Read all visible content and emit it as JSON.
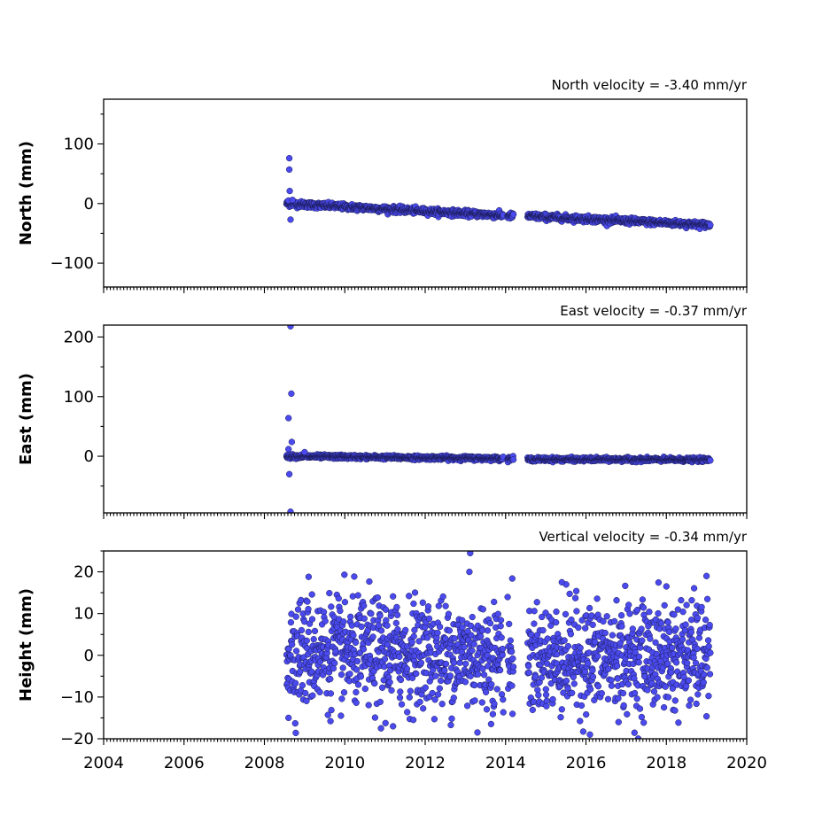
{
  "chart_data": [
    {
      "type": "scatter",
      "title": "North velocity = -3.40 mm/yr",
      "xlabel": "",
      "ylabel": "North (mm)",
      "xlim": [
        2004,
        2020
      ],
      "ylim": [
        -140,
        175
      ],
      "yticks": [
        100,
        0,
        -100
      ],
      "ytick_labels": [
        "100",
        "0",
        "−100"
      ],
      "xticks": [
        2004,
        2006,
        2008,
        2010,
        2012,
        2014,
        2016,
        2018,
        2020
      ],
      "xtick_labels": [
        "",
        "",
        "",
        "",
        "",
        "",
        "",
        "",
        ""
      ],
      "velocity_mm_per_yr": -3.4,
      "series": [
        {
          "color": "#4a4aee",
          "trend_segments": [
            [
              2008.55,
              0,
              2014.2,
              -21
            ],
            [
              2014.55,
              -21,
              2019.1,
              -36
            ]
          ],
          "noise": 2.5,
          "outliers": [
            [
              2008.62,
              76
            ],
            [
              2008.62,
              57
            ],
            [
              2008.63,
              21
            ],
            [
              2008.65,
              -27
            ],
            [
              2008.6,
              5
            ],
            [
              2008.7,
              6
            ]
          ],
          "gaps": [
            [
              2013.95,
              2014.05
            ],
            [
              2014.25,
              2014.5
            ]
          ]
        }
      ]
    },
    {
      "type": "scatter",
      "title": "East velocity = -0.37 mm/yr",
      "xlabel": "",
      "ylabel": "East (mm)",
      "xlim": [
        2004,
        2020
      ],
      "ylim": [
        -95,
        220
      ],
      "yticks": [
        200,
        100,
        0
      ],
      "ytick_labels": [
        "200",
        "100",
        "0"
      ],
      "xticks": [
        2004,
        2006,
        2008,
        2010,
        2012,
        2014,
        2016,
        2018,
        2020
      ],
      "xtick_labels": [
        "",
        "",
        "",
        "",
        "",
        "",
        "",
        "",
        ""
      ],
      "velocity_mm_per_yr": -0.37,
      "series": [
        {
          "color": "#4a4aee",
          "trend_segments": [
            [
              2008.55,
              0,
              2014.2,
              -4
            ],
            [
              2014.55,
              -5,
              2019.1,
              -6
            ]
          ],
          "noise": 1.6,
          "outliers": [
            [
              2008.65,
              218
            ],
            [
              2008.67,
              105
            ],
            [
              2008.6,
              64
            ],
            [
              2008.68,
              24
            ],
            [
              2008.62,
              -30
            ],
            [
              2008.65,
              -93
            ],
            [
              2008.6,
              12
            ],
            [
              2009.0,
              7
            ]
          ],
          "gaps": [
            [
              2013.95,
              2014.05
            ],
            [
              2014.25,
              2014.5
            ]
          ]
        }
      ]
    },
    {
      "type": "scatter",
      "title": "Vertical velocity = -0.34 mm/yr",
      "xlabel": "",
      "ylabel": "Height (mm)",
      "xlim": [
        2004,
        2020
      ],
      "ylim": [
        -20,
        25
      ],
      "yticks": [
        20,
        10,
        0,
        -10,
        -20
      ],
      "ytick_labels": [
        "20",
        "10",
        "0",
        "−10",
        "−20"
      ],
      "xticks": [
        2004,
        2006,
        2008,
        2010,
        2012,
        2014,
        2016,
        2018,
        2020
      ],
      "xtick_labels": [
        "2004",
        "2006",
        "2008",
        "2010",
        "2012",
        "2014",
        "2016",
        "2018",
        "2020"
      ],
      "velocity_mm_per_yr": -0.34,
      "series": [
        {
          "color": "#4a4aee",
          "trend_segments": [
            [
              2008.55,
              1,
              2014.2,
              0
            ],
            [
              2014.55,
              -1,
              2019.1,
              0
            ]
          ],
          "noise": 6.5,
          "outliers": [
            [
              2013.12,
              24.5
            ],
            [
              2013.1,
              20
            ],
            [
              2013.3,
              -18.5
            ],
            [
              2015.4,
              17.5
            ],
            [
              2016.1,
              -19
            ],
            [
              2008.6,
              -15
            ],
            [
              2010.9,
              -17.5
            ],
            [
              2011.2,
              -17
            ],
            [
              2018.0,
              16.5
            ],
            [
              2019.0,
              19
            ],
            [
              2009.1,
              18.8
            ]
          ],
          "gaps": [
            [
              2013.95,
              2014.05
            ],
            [
              2014.25,
              2014.5
            ]
          ]
        }
      ]
    }
  ]
}
